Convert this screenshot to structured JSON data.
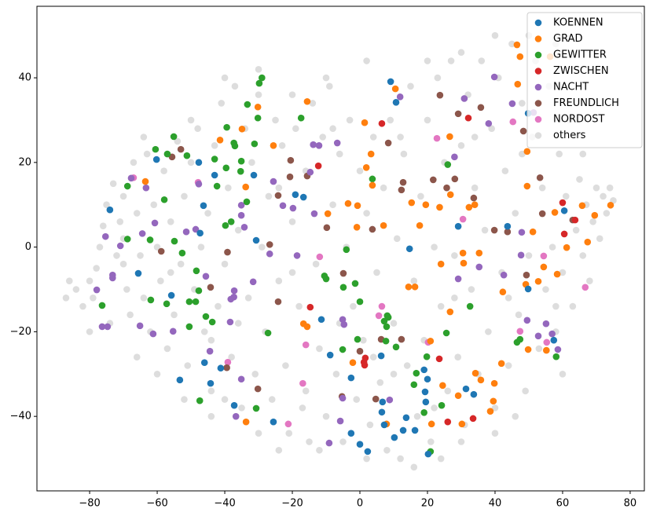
{
  "chart_data": {
    "type": "scatter",
    "legend": "upper right",
    "xlim": [
      -95.6,
      84.2
    ],
    "ylim": [
      -57.6,
      56.9
    ],
    "xticks": [
      {
        "value": -80,
        "label": "−80"
      },
      {
        "value": -60,
        "label": "−60"
      },
      {
        "value": -40,
        "label": "−40"
      },
      {
        "value": -20,
        "label": "−20"
      },
      0,
      20,
      40,
      60,
      80
    ],
    "yticks": [
      {
        "value": -40,
        "label": "−40"
      },
      {
        "value": -20,
        "label": "−20"
      },
      0,
      20,
      40
    ],
    "series": [
      {
        "name": "KOENNEN",
        "color": "#1f77b4",
        "alpha": 1,
        "x": [
          9.1,
          10.7,
          -74,
          -60.2,
          -47.7,
          -43,
          -46.3,
          -47.3,
          -30.7,
          -31.4,
          -19.1,
          -16.7,
          -65.6,
          -55.8,
          -53.3,
          -46,
          -44.2,
          -41.2,
          -37.2,
          -25.6,
          -11.4,
          -8.8,
          -2.6,
          -2.6,
          0,
          2.3,
          6.7,
          6.5,
          7.2,
          10.2,
          12.8,
          13.7,
          16.3,
          19,
          20,
          19.3,
          19.5,
          20.2,
          31.4,
          33.7,
          29.1,
          14.7,
          43.7,
          49.8,
          49.8,
          57.4,
          60.5,
          6.3
        ],
        "y": [
          39.1,
          34.2,
          8.8,
          20.7,
          20,
          17,
          9.8,
          3.3,
          1.6,
          17,
          12.4,
          11.8,
          -6.2,
          -11.4,
          -31.4,
          -27.3,
          -32.2,
          -28.6,
          -37.4,
          -41.3,
          -17.1,
          -25.5,
          -30.9,
          -44,
          -46.6,
          -48.3,
          -36.6,
          -39,
          -42,
          -45,
          -43.3,
          -40.3,
          -43.3,
          -29,
          -31.2,
          -34.2,
          -36.6,
          -48.9,
          -33.5,
          -34.8,
          4.9,
          -0.4,
          4.9,
          31.6,
          -9.9,
          -22,
          8.6,
          -25.7
        ]
      },
      {
        "name": "GRAD",
        "color": "#ff7f0e",
        "alpha": 1,
        "x": [
          -15.6,
          -30.2,
          -34.9,
          -41.4,
          -25.6,
          -33.8,
          -63.5,
          1.4,
          1.9,
          3.3,
          3.7,
          10.5,
          19.5,
          23.6,
          26.6,
          26.8,
          32.3,
          34,
          46.5,
          47.4,
          56.3,
          46.7,
          49.5,
          49.5,
          51.2,
          57.7,
          65.8,
          69.5,
          74.2,
          67.4,
          61.2,
          54.4,
          52.8,
          49.1,
          58.4,
          -0.7,
          -3.5,
          -9.5,
          -0.9,
          7,
          15.3,
          17.7,
          16.3,
          14.4,
          24,
          30.5,
          30.7,
          35.3,
          26.7,
          20.9,
          24.5,
          29.1,
          30.2,
          34.2,
          35.8,
          39.8,
          41.9,
          39.5,
          38.6,
          21.2,
          7.9,
          -2.1,
          -16.7,
          -15.6,
          -33.7,
          42.3,
          55.2,
          49.8
        ],
        "y": [
          34.4,
          33.1,
          27.9,
          25.3,
          24,
          14.2,
          15.5,
          29.4,
          18.8,
          22,
          14.6,
          37.4,
          10,
          9.4,
          26.1,
          12.4,
          9.4,
          10,
          47.8,
          45,
          45,
          38.5,
          22.6,
          14.4,
          3.6,
          8.2,
          9.8,
          7.5,
          9.9,
          1.2,
          -0.1,
          -4.7,
          -8.1,
          -8.8,
          -6.4,
          9.8,
          10.3,
          7.9,
          4.7,
          5.1,
          10.5,
          5.1,
          -9.4,
          -9.4,
          -4,
          -1.4,
          -3.8,
          -1.4,
          -15.3,
          -22.2,
          -32.7,
          -35.1,
          -41.8,
          -29.8,
          -31.4,
          -32.2,
          -27.5,
          -36.4,
          -38.8,
          -41.8,
          -41.8,
          -27.3,
          -18.1,
          -18.8,
          -41.3,
          -10.6,
          -24.4,
          -24.2
        ]
      },
      {
        "name": "GEWITTER",
        "color": "#2ca02c",
        "alpha": 1,
        "x": [
          -29,
          -29.8,
          -33.3,
          -30.2,
          -17.4,
          -55.1,
          -60.5,
          -57,
          -51.2,
          -39.4,
          -37.3,
          -37,
          -31.2,
          -35.1,
          -39.6,
          -35.3,
          -42.3,
          -68.8,
          -57.9,
          -33.5,
          -38.1,
          -39.8,
          -68.8,
          -62.1,
          -54.9,
          -52.6,
          -48.4,
          -61.9,
          -57.2,
          -50.5,
          -48.6,
          -47.7,
          -50.5,
          -45.6,
          -43.7,
          -76.3,
          -27.2,
          -30.7,
          -47.4,
          -4.9,
          -1.4,
          -10,
          -10.5,
          -4,
          3.7,
          7.2,
          8.1,
          7.9,
          7.7,
          8.4,
          10.7,
          0,
          -0.7,
          -5.1,
          16.7,
          16,
          19.8,
          19,
          20.9,
          24.2,
          25.6,
          26,
          32.6,
          46.5,
          47.4,
          58.1,
          -43
        ],
        "y": [
          40,
          38.7,
          33.7,
          30.5,
          30.5,
          26.1,
          23.1,
          22,
          21.6,
          28.3,
          24.6,
          23.9,
          24.4,
          20.3,
          18.7,
          17.9,
          14.4,
          14.4,
          11.2,
          10.7,
          6,
          5.1,
          1.9,
          1.7,
          1.4,
          -1.4,
          -5.6,
          -12.5,
          -13.4,
          -12.9,
          -12.9,
          -10.3,
          -18.8,
          -16.4,
          -17.7,
          -13.8,
          -20.3,
          -38.1,
          -36.3,
          -9.5,
          -8.6,
          -7.5,
          -6.8,
          -0.6,
          16.1,
          -17.5,
          -16.2,
          -18.8,
          -22.2,
          -16.6,
          -23.6,
          -12.9,
          -21.8,
          -24.2,
          -29.8,
          -32.5,
          -25.9,
          -39.1,
          -48.3,
          -37.4,
          -20.3,
          19.5,
          -14,
          -22.5,
          -21.8,
          -25.9,
          20.8
        ]
      },
      {
        "name": "ZWISCHEN",
        "color": "#d62728",
        "alpha": 1,
        "x": [
          6.5,
          -12.3,
          -14.7,
          1.6,
          1.2,
          1.4,
          23.5,
          26,
          33.5,
          32.1,
          60,
          60.5,
          63.7
        ],
        "y": [
          29.2,
          19.2,
          -14.2,
          -26.2,
          -27.2,
          -27.9,
          -26.4,
          -41.3,
          -40.5,
          30.5,
          10.5,
          3.1,
          6.4
        ]
      },
      {
        "name": "NACHT",
        "color": "#9467bd",
        "alpha": 1,
        "x": [
          11.9,
          30.9,
          39.8,
          38.1,
          45.1,
          51.4,
          28,
          -14.7,
          -13.8,
          -12.1,
          -6.7,
          -25.6,
          -19.8,
          -22.8,
          -35.1,
          -35.1,
          -13.5,
          -34.2,
          -67.7,
          -63.3,
          -47.7,
          -60.7,
          -51.4,
          -48.6,
          -75.3,
          -70.9,
          -73.2,
          -73.2,
          -77.9,
          -64.4,
          -45.6,
          -37.2,
          -37.3,
          -38.2,
          -38.4,
          -31.6,
          -26.7,
          -18.6,
          -76.3,
          -74.7,
          -65.1,
          -61.2,
          -55.3,
          -44.4,
          -35.1,
          -36.7,
          -5.1,
          -4.7,
          -5.1,
          -5.8,
          -9.1,
          8.8,
          29.1,
          35.3,
          49.5,
          52.8,
          58.6,
          55.1,
          56.9,
          47.9,
          47.7,
          42.6
        ],
        "y": [
          35.5,
          35.1,
          40.2,
          29.2,
          33.9,
          31.8,
          21.3,
          17.7,
          24.2,
          24,
          24.6,
          15.5,
          9.2,
          9.8,
          9.9,
          7.5,
          7.9,
          4.7,
          16.3,
          14,
          14.9,
          5.7,
          3.6,
          4.2,
          2.5,
          0.3,
          -6.6,
          -7.3,
          -10.1,
          3.2,
          -6.9,
          -10.3,
          -11.8,
          -12.3,
          -17.7,
          -8.2,
          -1.6,
          -2,
          -18.8,
          -18.8,
          -18.6,
          -20.5,
          -19.9,
          -24.6,
          -31.2,
          -40,
          -17.1,
          -18.3,
          -35.7,
          -41.1,
          -46.3,
          -36.1,
          -7.5,
          -4.7,
          -17.3,
          -21,
          -24.2,
          -18.1,
          -20.5,
          3.5,
          -1.9,
          -6.6
        ]
      },
      {
        "name": "FREUNDLICH",
        "color": "#8c564b",
        "alpha": 1,
        "x": [
          8.4,
          12.8,
          12.3,
          23.7,
          29.1,
          35.8,
          33.7,
          28.1,
          21.7,
          25.7,
          48.4,
          53.3,
          54,
          63,
          49.3,
          39.8,
          43.7,
          3.7,
          -9.8,
          -4.9,
          6.3,
          12.3,
          0,
          4.7,
          -5.3,
          -24.2,
          -20.5,
          -20.7,
          -26.7,
          -24.2,
          -30.2,
          -39.4,
          -55.6,
          -53,
          -58.8,
          -39.2,
          -44.2,
          -15.6
        ],
        "y": [
          24.6,
          15.3,
          13.5,
          35.9,
          31.5,
          33,
          11.6,
          16.1,
          15.9,
          14,
          27.4,
          16.4,
          7.9,
          6.4,
          -6.6,
          4,
          3.6,
          4.2,
          4.6,
          -6.2,
          -21.8,
          -21.8,
          -24.6,
          -35.9,
          -35.3,
          12.2,
          20.5,
          16.6,
          0.6,
          -12.9,
          -33.5,
          -28.5,
          21.3,
          23.1,
          -1,
          -1.2,
          -9.5,
          16.8
        ]
      },
      {
        "name": "NORDOST",
        "color": "#e377c2",
        "alpha": 1,
        "x": [
          -47.9,
          -67,
          -11.9,
          -16,
          -16.9,
          -21.2,
          -39.1,
          6.5,
          5.6,
          20.2,
          22.8,
          45.3,
          30.5,
          54.4,
          55.3,
          47.4,
          66.7
        ],
        "y": [
          15.3,
          16.4,
          -2.3,
          -23.1,
          -32.2,
          -41.8,
          -27.2,
          -14,
          -16.2,
          -22.5,
          25.7,
          29.6,
          6.6,
          -2.1,
          -22.5,
          -19.9,
          -9.5
        ]
      },
      {
        "name": "others",
        "color": "#a9a9a9",
        "alpha": 0.4,
        "x": [
          -87,
          -84,
          -82,
          -80,
          -79,
          -78,
          -77,
          -76,
          -75,
          -73,
          -72,
          -71,
          -70,
          -69,
          -68,
          -67,
          -66,
          -65,
          -64,
          -63,
          -62,
          -61,
          -60,
          -59,
          -58,
          -57,
          -56,
          -55,
          -54,
          -53,
          -52,
          -51,
          -50,
          -49,
          -48,
          -47,
          -46,
          -45,
          -44,
          -43,
          -42,
          -41,
          -40,
          -39,
          -38,
          -37,
          -36,
          -35,
          -34,
          -33,
          -32,
          -31,
          -30,
          -29,
          -28,
          -27,
          -26,
          -25,
          -24,
          -23,
          -22,
          -21,
          -20,
          -19,
          -18,
          -17,
          -16,
          -15,
          -14,
          -13,
          -12,
          -11,
          -10,
          -9,
          -8,
          -7,
          -6,
          -5,
          -4,
          -3,
          -2,
          -1,
          0,
          1,
          2,
          3,
          4,
          5,
          6,
          7,
          8,
          9,
          10,
          11,
          12,
          13,
          14,
          15,
          16,
          17,
          18,
          19,
          20,
          21,
          22,
          23,
          24,
          25,
          26,
          27,
          28,
          29,
          30,
          31,
          32,
          33,
          34,
          35,
          36,
          37,
          38,
          39,
          40,
          41,
          42,
          43,
          44,
          45,
          46,
          47,
          48,
          49,
          50,
          51,
          52,
          53,
          54,
          55,
          56,
          57,
          58,
          59,
          60,
          61,
          62,
          63,
          64,
          65,
          66,
          67,
          68,
          69,
          70,
          71,
          72,
          73,
          74,
          75,
          -80,
          -74,
          -66,
          -60,
          -52,
          -44,
          -30,
          -24,
          -12,
          2,
          16,
          24,
          30,
          40,
          46,
          -64,
          -50,
          -40,
          -30,
          -20,
          -10,
          2,
          20,
          30,
          40,
          50,
          58,
          -86,
          -70,
          -56,
          -36,
          -20,
          -6,
          10,
          28,
          44,
          60,
          -44,
          -24,
          -8,
          12,
          34,
          48,
          -70,
          -40,
          58,
          66,
          22,
          -16,
          4
        ],
        "y": [
          -12,
          -10,
          -14,
          -8,
          -12,
          -5,
          0,
          5,
          10,
          15,
          -2,
          6,
          12,
          -10,
          -16,
          20,
          8,
          -2,
          -12,
          22,
          -20,
          10,
          0,
          -8,
          18,
          -24,
          6,
          -16,
          25,
          -4,
          12,
          -28,
          20,
          -10,
          28,
          0,
          -20,
          8,
          -34,
          24,
          -14,
          34,
          -4,
          14,
          -26,
          38,
          4,
          -38,
          28,
          -12,
          20,
          -30,
          36,
          0,
          -20,
          12,
          -36,
          30,
          -8,
          24,
          -28,
          -44,
          6,
          28,
          -14,
          -38,
          18,
          -46,
          34,
          -4,
          -24,
          26,
          -40,
          38,
          10,
          -30,
          22,
          -46,
          0,
          30,
          -14,
          -36,
          18,
          -22,
          8,
          -42,
          26,
          -6,
          -32,
          14,
          -48,
          30,
          -18,
          2,
          -50,
          22,
          -28,
          38,
          -8,
          -40,
          12,
          -22,
          30,
          -46,
          0,
          40,
          -14,
          20,
          -34,
          44,
          -2,
          -26,
          24,
          -42,
          36,
          -10,
          14,
          -30,
          44,
          4,
          -20,
          28,
          -38,
          40,
          -6,
          18,
          -28,
          48,
          8,
          -16,
          34,
          -34,
          -2,
          26,
          44,
          -24,
          14,
          -10,
          38,
          0,
          -20,
          22,
          -6,
          12,
          30,
          -14,
          4,
          16,
          -2,
          10,
          -8,
          6,
          14,
          2,
          12,
          8,
          14,
          11,
          -20,
          -18,
          -26,
          -30,
          -36,
          -40,
          -44,
          -48,
          -48,
          -50,
          -52,
          -50,
          -46,
          -44,
          -40,
          26,
          30,
          40,
          42,
          36,
          40,
          44,
          44,
          46,
          50,
          50,
          48,
          -8,
          -4,
          -6,
          -18,
          -6,
          -18,
          -30,
          -12,
          -12,
          -30,
          -22,
          14,
          28,
          26,
          26,
          22,
          2,
          -36,
          -14,
          22,
          -38,
          -34,
          -26
        ]
      }
    ]
  }
}
